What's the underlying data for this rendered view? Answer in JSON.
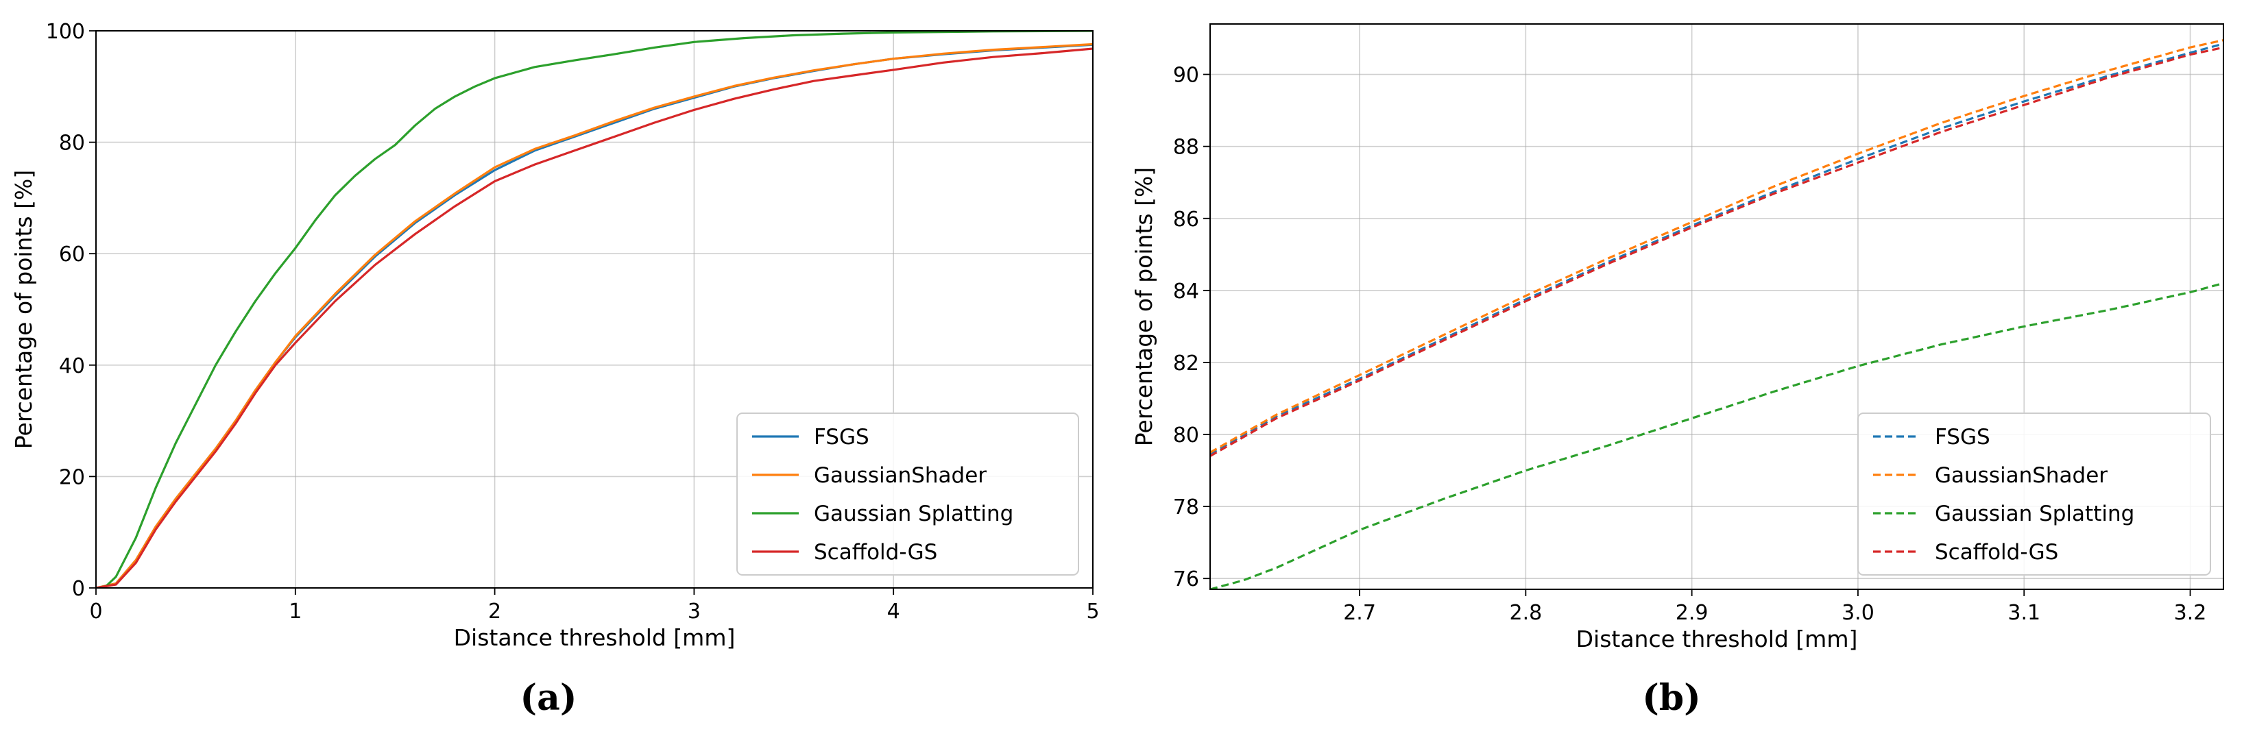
{
  "colors": {
    "FSGS": "#1f77b4",
    "GaussianShader": "#ff7f0e",
    "Gaussian Splatting": "#2ca02c",
    "Scaffold-GS": "#d62728"
  },
  "chart_data": [
    {
      "type": "line",
      "panel_label": "(a)",
      "xlabel": "Distance threshold [mm]",
      "ylabel": "Percentage of points [%]",
      "xlim": [
        0,
        5
      ],
      "ylim": [
        0,
        100
      ],
      "xticks": [
        0,
        1,
        2,
        3,
        4,
        5
      ],
      "xtick_labels": [
        "0",
        "1",
        "2",
        "3",
        "4",
        "5"
      ],
      "yticks": [
        0,
        20,
        40,
        60,
        80,
        100
      ],
      "ytick_labels": [
        "0",
        "20",
        "40",
        "60",
        "80",
        "100"
      ],
      "grid": true,
      "line_style": "solid",
      "legend_position": "lower right",
      "series": [
        {
          "name": "FSGS",
          "points": [
            [
              0,
              0
            ],
            [
              0.1,
              0.8
            ],
            [
              0.2,
              5
            ],
            [
              0.3,
              11
            ],
            [
              0.4,
              16
            ],
            [
              0.5,
              20.5
            ],
            [
              0.6,
              25
            ],
            [
              0.7,
              30
            ],
            [
              0.8,
              35.5
            ],
            [
              0.9,
              40.5
            ],
            [
              1.0,
              45
            ],
            [
              1.2,
              52.5
            ],
            [
              1.4,
              59.5
            ],
            [
              1.6,
              65.5
            ],
            [
              1.8,
              70.5
            ],
            [
              2.0,
              75
            ],
            [
              2.2,
              78.5
            ],
            [
              2.4,
              81
            ],
            [
              2.6,
              83.5
            ],
            [
              2.8,
              86
            ],
            [
              3.0,
              88
            ],
            [
              3.2,
              90
            ],
            [
              3.4,
              91.5
            ],
            [
              3.6,
              92.8
            ],
            [
              3.8,
              94
            ],
            [
              4.0,
              95
            ],
            [
              4.25,
              95.8
            ],
            [
              4.5,
              96.5
            ],
            [
              4.75,
              97
            ],
            [
              5.0,
              97.5
            ]
          ]
        },
        {
          "name": "GaussianShader",
          "points": [
            [
              0,
              0
            ],
            [
              0.1,
              0.8
            ],
            [
              0.2,
              5
            ],
            [
              0.3,
              11
            ],
            [
              0.4,
              16
            ],
            [
              0.5,
              20.5
            ],
            [
              0.6,
              25
            ],
            [
              0.7,
              30
            ],
            [
              0.8,
              35.5
            ],
            [
              0.9,
              40.5
            ],
            [
              1.0,
              45.2
            ],
            [
              1.2,
              52.8
            ],
            [
              1.4,
              59.8
            ],
            [
              1.6,
              65.8
            ],
            [
              1.8,
              70.8
            ],
            [
              2.0,
              75.5
            ],
            [
              2.2,
              78.8
            ],
            [
              2.4,
              81.2
            ],
            [
              2.6,
              83.8
            ],
            [
              2.8,
              86.2
            ],
            [
              3.0,
              88.2
            ],
            [
              3.2,
              90.1
            ],
            [
              3.4,
              91.6
            ],
            [
              3.6,
              92.9
            ],
            [
              3.8,
              94
            ],
            [
              4.0,
              95
            ],
            [
              4.25,
              95.9
            ],
            [
              4.5,
              96.6
            ],
            [
              4.75,
              97.1
            ],
            [
              5.0,
              97.6
            ]
          ]
        },
        {
          "name": "Gaussian Splatting",
          "points": [
            [
              0,
              0
            ],
            [
              0.05,
              0.3
            ],
            [
              0.1,
              2
            ],
            [
              0.2,
              9
            ],
            [
              0.3,
              18
            ],
            [
              0.4,
              26
            ],
            [
              0.5,
              33
            ],
            [
              0.6,
              40
            ],
            [
              0.7,
              46
            ],
            [
              0.8,
              51.5
            ],
            [
              0.9,
              56.5
            ],
            [
              1.0,
              61
            ],
            [
              1.1,
              66
            ],
            [
              1.2,
              70.5
            ],
            [
              1.3,
              74
            ],
            [
              1.4,
              77
            ],
            [
              1.5,
              79.5
            ],
            [
              1.6,
              83
            ],
            [
              1.7,
              86
            ],
            [
              1.8,
              88.2
            ],
            [
              1.9,
              90
            ],
            [
              2.0,
              91.5
            ],
            [
              2.2,
              93.5
            ],
            [
              2.4,
              94.7
            ],
            [
              2.6,
              95.8
            ],
            [
              2.8,
              97
            ],
            [
              3.0,
              98
            ],
            [
              3.25,
              98.7
            ],
            [
              3.5,
              99.2
            ],
            [
              3.75,
              99.5
            ],
            [
              4.0,
              99.7
            ],
            [
              4.5,
              99.9
            ],
            [
              5.0,
              100
            ]
          ]
        },
        {
          "name": "Scaffold-GS",
          "points": [
            [
              0,
              0
            ],
            [
              0.1,
              0.6
            ],
            [
              0.2,
              4.5
            ],
            [
              0.3,
              10.5
            ],
            [
              0.4,
              15.5
            ],
            [
              0.5,
              20
            ],
            [
              0.6,
              24.5
            ],
            [
              0.7,
              29.5
            ],
            [
              0.8,
              35
            ],
            [
              0.9,
              40
            ],
            [
              1.0,
              44
            ],
            [
              1.2,
              51.5
            ],
            [
              1.4,
              58
            ],
            [
              1.6,
              63.5
            ],
            [
              1.8,
              68.5
            ],
            [
              2.0,
              73
            ],
            [
              2.2,
              76
            ],
            [
              2.4,
              78.5
            ],
            [
              2.6,
              81
            ],
            [
              2.8,
              83.5
            ],
            [
              3.0,
              85.8
            ],
            [
              3.2,
              87.8
            ],
            [
              3.4,
              89.5
            ],
            [
              3.6,
              91
            ],
            [
              3.8,
              92
            ],
            [
              4.0,
              93
            ],
            [
              4.25,
              94.3
            ],
            [
              4.5,
              95.3
            ],
            [
              4.75,
              96
            ],
            [
              5.0,
              96.8
            ]
          ]
        }
      ]
    },
    {
      "type": "line",
      "panel_label": "(b)",
      "xlabel": "Distance threshold [mm]",
      "ylabel": "Percentage of points [%]",
      "xlim": [
        2.61,
        3.22
      ],
      "ylim": [
        75.7,
        91.4
      ],
      "xticks": [
        2.7,
        2.8,
        2.9,
        3.0,
        3.1,
        3.2
      ],
      "xtick_labels": [
        "2.7",
        "2.8",
        "2.9",
        "3.0",
        "3.1",
        "3.2"
      ],
      "yticks": [
        76,
        78,
        80,
        82,
        84,
        86,
        88,
        90
      ],
      "ytick_labels": [
        "76",
        "78",
        "80",
        "82",
        "84",
        "86",
        "88",
        "90"
      ],
      "grid": true,
      "line_style": "dashed",
      "legend_position": "lower right",
      "series": [
        {
          "name": "FSGS",
          "points": [
            [
              2.61,
              79.45
            ],
            [
              2.65,
              80.5
            ],
            [
              2.7,
              81.55
            ],
            [
              2.75,
              82.65
            ],
            [
              2.8,
              83.75
            ],
            [
              2.85,
              84.8
            ],
            [
              2.9,
              85.8
            ],
            [
              2.95,
              86.75
            ],
            [
              3.0,
              87.65
            ],
            [
              3.05,
              88.5
            ],
            [
              3.1,
              89.25
            ],
            [
              3.15,
              89.95
            ],
            [
              3.2,
              90.6
            ],
            [
              3.22,
              90.85
            ]
          ]
        },
        {
          "name": "GaussianShader",
          "points": [
            [
              2.61,
              79.5
            ],
            [
              2.65,
              80.55
            ],
            [
              2.7,
              81.65
            ],
            [
              2.75,
              82.75
            ],
            [
              2.8,
              83.85
            ],
            [
              2.85,
              84.9
            ],
            [
              2.9,
              85.9
            ],
            [
              2.95,
              86.9
            ],
            [
              3.0,
              87.8
            ],
            [
              3.05,
              88.65
            ],
            [
              3.1,
              89.4
            ],
            [
              3.15,
              90.1
            ],
            [
              3.2,
              90.75
            ],
            [
              3.22,
              90.95
            ]
          ]
        },
        {
          "name": "Gaussian Splatting",
          "points": [
            [
              2.61,
              75.7
            ],
            [
              2.63,
              75.95
            ],
            [
              2.65,
              76.3
            ],
            [
              2.7,
              77.35
            ],
            [
              2.75,
              78.2
            ],
            [
              2.8,
              79.0
            ],
            [
              2.85,
              79.7
            ],
            [
              2.9,
              80.45
            ],
            [
              2.95,
              81.2
            ],
            [
              3.0,
              81.9
            ],
            [
              3.05,
              82.5
            ],
            [
              3.1,
              83.0
            ],
            [
              3.15,
              83.45
            ],
            [
              3.2,
              83.95
            ],
            [
              3.22,
              84.2
            ]
          ]
        },
        {
          "name": "Scaffold-GS",
          "points": [
            [
              2.61,
              79.4
            ],
            [
              2.65,
              80.45
            ],
            [
              2.7,
              81.5
            ],
            [
              2.75,
              82.6
            ],
            [
              2.8,
              83.7
            ],
            [
              2.85,
              84.75
            ],
            [
              2.9,
              85.75
            ],
            [
              2.95,
              86.7
            ],
            [
              3.0,
              87.55
            ],
            [
              3.05,
              88.4
            ],
            [
              3.1,
              89.15
            ],
            [
              3.15,
              89.9
            ],
            [
              3.2,
              90.55
            ],
            [
              3.22,
              90.75
            ]
          ]
        }
      ]
    }
  ]
}
